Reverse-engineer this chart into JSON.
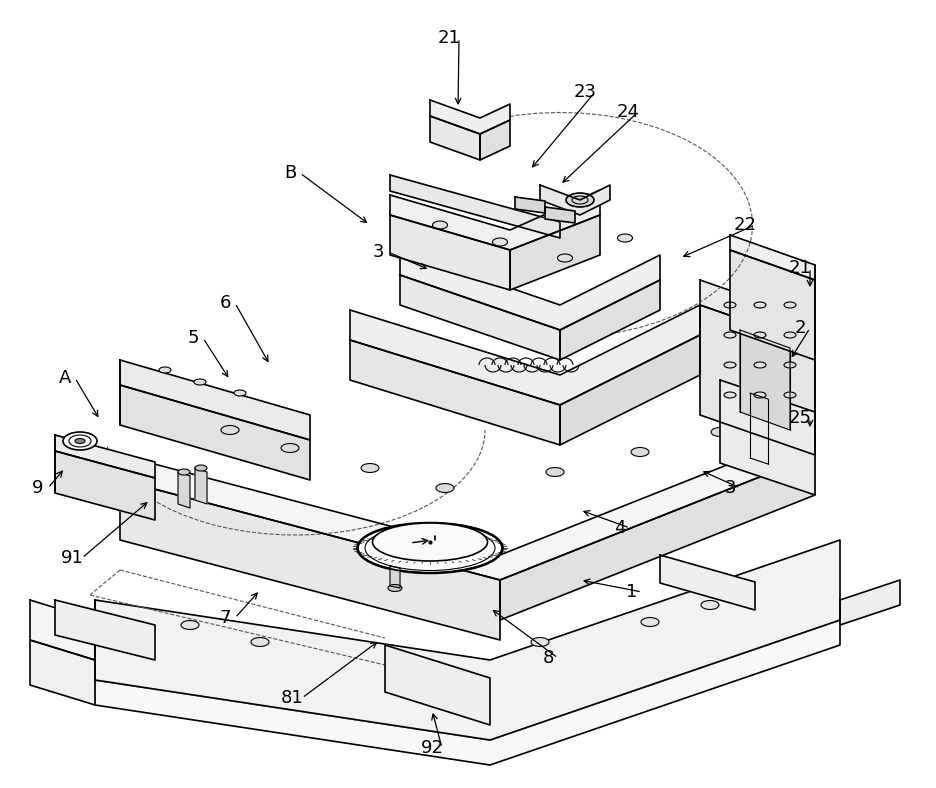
{
  "bg_color": "#ffffff",
  "line_color": "#000000",
  "figsize": [
    9.36,
    7.88
  ],
  "dpi": 100,
  "label_data": [
    [
      "21",
      449,
      38,
      458,
      108
    ],
    [
      "23",
      585,
      92,
      530,
      170
    ],
    [
      "24",
      628,
      112,
      560,
      185
    ],
    [
      "B",
      290,
      173,
      370,
      225
    ],
    [
      "22",
      745,
      225,
      680,
      258
    ],
    [
      "21",
      800,
      268,
      810,
      290
    ],
    [
      "3",
      378,
      252,
      430,
      270
    ],
    [
      "6",
      225,
      303,
      270,
      365
    ],
    [
      "5",
      193,
      338,
      230,
      380
    ],
    [
      "2",
      800,
      328,
      790,
      360
    ],
    [
      "A",
      65,
      378,
      100,
      420
    ],
    [
      "25",
      800,
      418,
      810,
      430
    ],
    [
      "3",
      730,
      488,
      700,
      470
    ],
    [
      "9",
      38,
      488,
      65,
      468
    ],
    [
      "4",
      620,
      528,
      580,
      510
    ],
    [
      "91",
      72,
      558,
      150,
      500
    ],
    [
      "1",
      632,
      592,
      580,
      580
    ],
    [
      "7",
      225,
      618,
      260,
      590
    ],
    [
      "8",
      548,
      658,
      490,
      608
    ],
    [
      "81",
      292,
      698,
      380,
      640
    ],
    [
      "92",
      432,
      748,
      432,
      710
    ]
  ]
}
